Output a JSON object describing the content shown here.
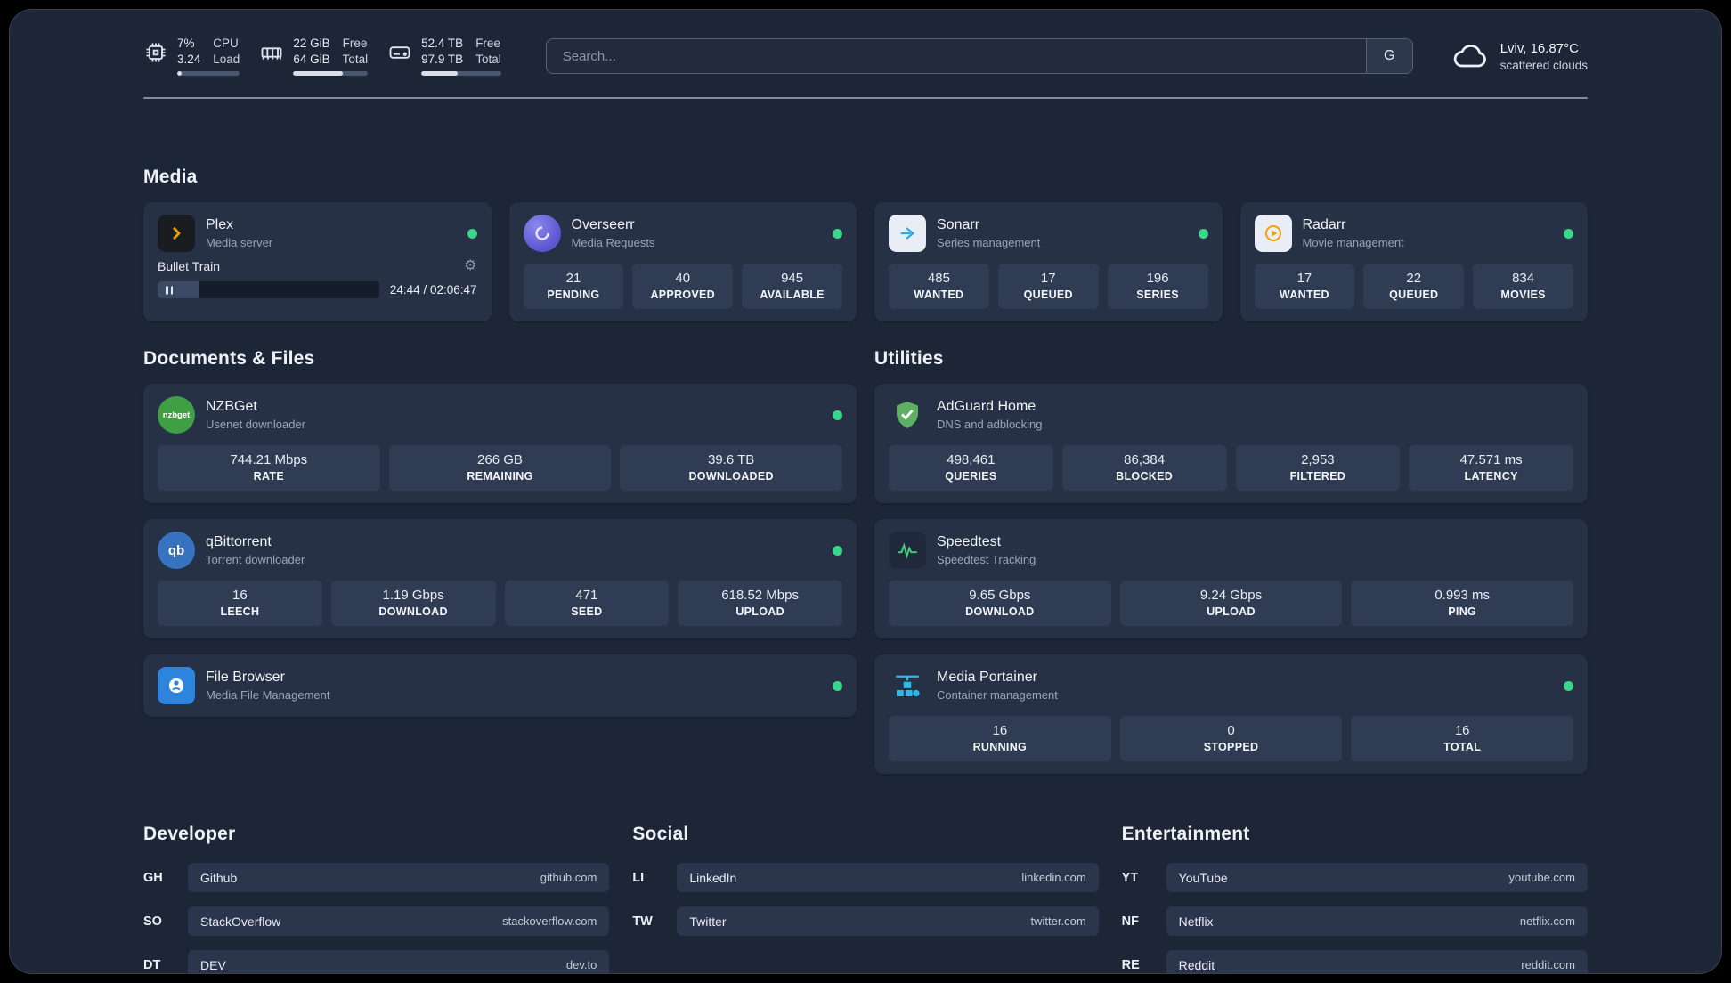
{
  "topbar": {
    "cpu": {
      "value1": "7%",
      "value2": "3.24",
      "label1": "CPU",
      "label2": "Load",
      "bar": 7
    },
    "memory": {
      "value1": "22 GiB",
      "value2": "64 GiB",
      "label1": "Free",
      "label2": "Total",
      "bar": 66
    },
    "disk": {
      "value1": "52.4 TB",
      "value2": "97.9 TB",
      "label1": "Free",
      "label2": "Total",
      "bar": 46
    },
    "search": {
      "placeholder": "Search...",
      "provider_label": "G"
    },
    "weather": {
      "location": "Lviv, 16.87°C",
      "condition": "scattered clouds"
    }
  },
  "icons": {
    "gear": "⚙",
    "nzbget": "nzbget",
    "qb": "qb"
  },
  "sections": {
    "media": {
      "title": "Media",
      "plex": {
        "name": "Plex",
        "subtitle": "Media server",
        "player": {
          "title": "Bullet Train",
          "time": "24:44 / 02:06:47",
          "progress": 19
        }
      },
      "overseerr": {
        "name": "Overseerr",
        "subtitle": "Media Requests",
        "stats": [
          {
            "value": "21",
            "label": "PENDING"
          },
          {
            "value": "40",
            "label": "APPROVED"
          },
          {
            "value": "945",
            "label": "AVAILABLE"
          }
        ]
      },
      "sonarr": {
        "name": "Sonarr",
        "subtitle": "Series management",
        "stats": [
          {
            "value": "485",
            "label": "WANTED"
          },
          {
            "value": "17",
            "label": "QUEUED"
          },
          {
            "value": "196",
            "label": "SERIES"
          }
        ]
      },
      "radarr": {
        "name": "Radarr",
        "subtitle": "Movie management",
        "stats": [
          {
            "value": "17",
            "label": "WANTED"
          },
          {
            "value": "22",
            "label": "QUEUED"
          },
          {
            "value": "834",
            "label": "MOVIES"
          }
        ]
      }
    },
    "documents": {
      "title": "Documents & Files",
      "nzbget": {
        "name": "NZBGet",
        "subtitle": "Usenet downloader",
        "stats": [
          {
            "value": "744.21 Mbps",
            "label": "RATE"
          },
          {
            "value": "266 GB",
            "label": "REMAINING"
          },
          {
            "value": "39.6 TB",
            "label": "DOWNLOADED"
          }
        ]
      },
      "qbittorrent": {
        "name": "qBittorrent",
        "subtitle": "Torrent downloader",
        "stats": [
          {
            "value": "16",
            "label": "LEECH"
          },
          {
            "value": "1.19 Gbps",
            "label": "DOWNLOAD"
          },
          {
            "value": "471",
            "label": "SEED"
          },
          {
            "value": "618.52 Mbps",
            "label": "UPLOAD"
          }
        ]
      },
      "filebrowser": {
        "name": "File Browser",
        "subtitle": "Media File Management"
      }
    },
    "utilities": {
      "title": "Utilities",
      "adguard": {
        "name": "AdGuard Home",
        "subtitle": "DNS and adblocking",
        "stats": [
          {
            "value": "498,461",
            "label": "QUERIES"
          },
          {
            "value": "86,384",
            "label": "BLOCKED"
          },
          {
            "value": "2,953",
            "label": "FILTERED"
          },
          {
            "value": "47.571 ms",
            "label": "LATENCY"
          }
        ]
      },
      "speedtest": {
        "name": "Speedtest",
        "subtitle": "Speedtest Tracking",
        "stats": [
          {
            "value": "9.65 Gbps",
            "label": "DOWNLOAD"
          },
          {
            "value": "9.24 Gbps",
            "label": "UPLOAD"
          },
          {
            "value": "0.993 ms",
            "label": "PING"
          }
        ]
      },
      "portainer": {
        "name": "Media Portainer",
        "subtitle": "Container management",
        "stats": [
          {
            "value": "16",
            "label": "RUNNING"
          },
          {
            "value": "0",
            "label": "STOPPED"
          },
          {
            "value": "16",
            "label": "TOTAL"
          }
        ]
      }
    }
  },
  "bookmarks": {
    "developer": {
      "title": "Developer",
      "items": [
        {
          "abbr": "GH",
          "name": "Github",
          "url": "github.com"
        },
        {
          "abbr": "SO",
          "name": "StackOverflow",
          "url": "stackoverflow.com"
        },
        {
          "abbr": "DT",
          "name": "DEV",
          "url": "dev.to"
        }
      ]
    },
    "social": {
      "title": "Social",
      "items": [
        {
          "abbr": "LI",
          "name": "LinkedIn",
          "url": "linkedin.com"
        },
        {
          "abbr": "TW",
          "name": "Twitter",
          "url": "twitter.com"
        }
      ]
    },
    "entertainment": {
      "title": "Entertainment",
      "items": [
        {
          "abbr": "YT",
          "name": "YouTube",
          "url": "youtube.com"
        },
        {
          "abbr": "NF",
          "name": "Netflix",
          "url": "netflix.com"
        },
        {
          "abbr": "RE",
          "name": "Reddit",
          "url": "reddit.com"
        }
      ]
    }
  }
}
